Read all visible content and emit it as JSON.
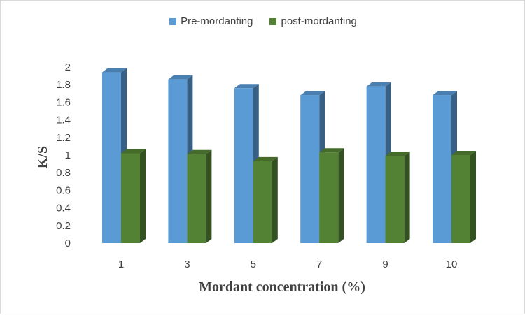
{
  "chart_data": {
    "type": "bar",
    "style": "3d-clustered-column",
    "categories": [
      "1",
      "3",
      "5",
      "7",
      "9",
      "10"
    ],
    "series": [
      {
        "name": "Pre-mordanting",
        "values": [
          1.94,
          1.86,
          1.76,
          1.68,
          1.78,
          1.68
        ],
        "color": "#5b9bd5"
      },
      {
        "name": "post-mordanting",
        "values": [
          1.02,
          1.01,
          0.93,
          1.03,
          0.99,
          1.0
        ],
        "color": "#548235"
      }
    ],
    "title": "",
    "xlabel": "Mordant concentration (%)",
    "ylabel": "K/S",
    "ylim": [
      0,
      2
    ],
    "yticks": [
      "0",
      "0.2",
      "0.4",
      "0.6",
      "0.8",
      "1",
      "1.2",
      "1.4",
      "1.6",
      "1.8",
      "2"
    ],
    "grid": false,
    "legend_position": "top"
  }
}
